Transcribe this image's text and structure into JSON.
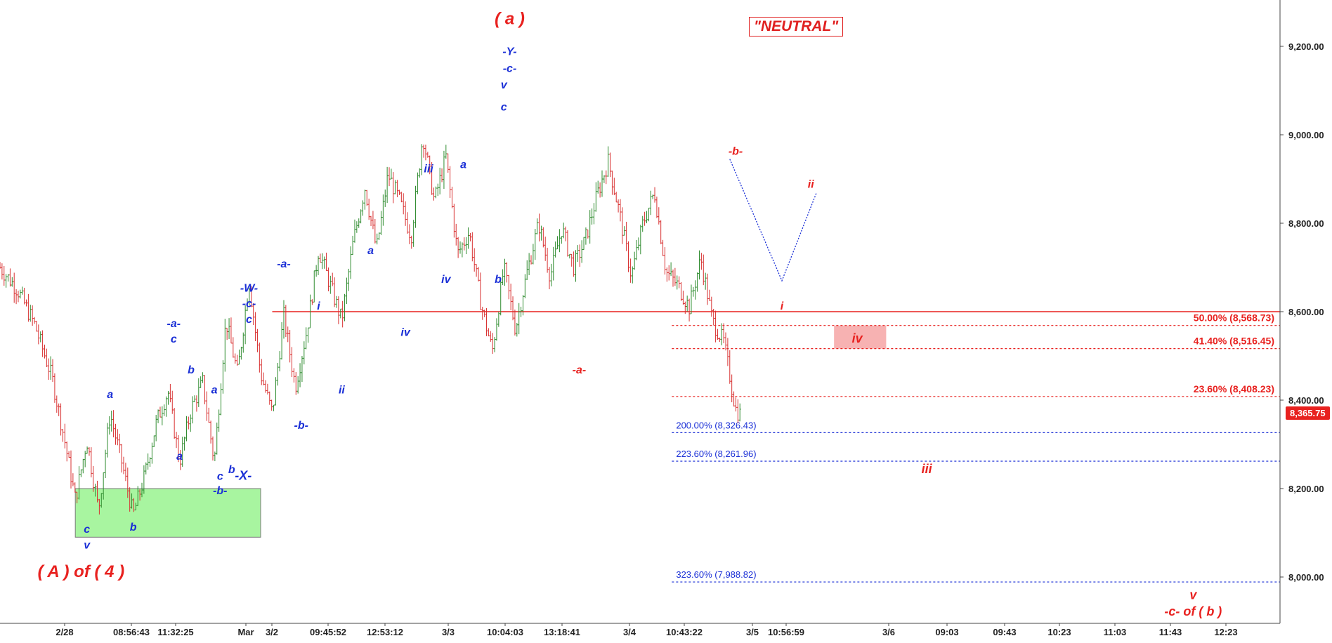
{
  "chart_data": {
    "type": "candlestick",
    "title": "",
    "badge": "\"NEUTRAL\"",
    "current_price": "8,365.75",
    "y_ticks": [
      "8,000.00",
      "8,200.00",
      "8,400.00",
      "8,600.00",
      "8,800.00",
      "9,000.00",
      "9,200.00"
    ],
    "x_ticks": [
      "2/28",
      "08:56:43",
      "11:32:25",
      "Mar",
      "3/2",
      "09:45:52",
      "12:53:12",
      "3/3",
      "10:04:03",
      "13:18:41",
      "3/4",
      "10:43:22",
      "3/5",
      "10:56:59",
      "3/6",
      "09:03",
      "09:43",
      "10:23",
      "11:03",
      "11:43",
      "12:23"
    ],
    "price_path": [
      {
        "t": 0,
        "p": 8700
      },
      {
        "t": 3,
        "p": 8650
      },
      {
        "t": 6,
        "p": 8570
      },
      {
        "t": 9,
        "p": 8450
      },
      {
        "t": 11,
        "p": 8320
      },
      {
        "t": 13,
        "p": 8175
      },
      {
        "t": 15,
        "p": 8310
      },
      {
        "t": 17,
        "p": 8150
      },
      {
        "t": 19,
        "p": 8370
      },
      {
        "t": 21,
        "p": 8260
      },
      {
        "t": 23,
        "p": 8140
      },
      {
        "t": 25,
        "p": 8230
      },
      {
        "t": 27,
        "p": 8350
      },
      {
        "t": 29,
        "p": 8420
      },
      {
        "t": 31,
        "p": 8260
      },
      {
        "t": 33,
        "p": 8380
      },
      {
        "t": 35,
        "p": 8440
      },
      {
        "t": 37,
        "p": 8260
      },
      {
        "t": 39,
        "p": 8580
      },
      {
        "t": 41,
        "p": 8460
      },
      {
        "t": 43,
        "p": 8670
      },
      {
        "t": 45,
        "p": 8460
      },
      {
        "t": 47,
        "p": 8370
      },
      {
        "t": 49,
        "p": 8590
      },
      {
        "t": 51,
        "p": 8430
      },
      {
        "t": 53,
        "p": 8560
      },
      {
        "t": 55,
        "p": 8740
      },
      {
        "t": 57,
        "p": 8660
      },
      {
        "t": 59,
        "p": 8580
      },
      {
        "t": 61,
        "p": 8760
      },
      {
        "t": 63,
        "p": 8880
      },
      {
        "t": 65,
        "p": 8740
      },
      {
        "t": 67,
        "p": 8910
      },
      {
        "t": 69,
        "p": 8850
      },
      {
        "t": 71,
        "p": 8770
      },
      {
        "t": 73,
        "p": 9000
      },
      {
        "t": 75,
        "p": 8850
      },
      {
        "t": 77,
        "p": 8950
      },
      {
        "t": 79,
        "p": 8730
      },
      {
        "t": 81,
        "p": 8780
      },
      {
        "t": 83,
        "p": 8620
      },
      {
        "t": 85,
        "p": 8510
      },
      {
        "t": 87,
        "p": 8700
      },
      {
        "t": 89,
        "p": 8560
      },
      {
        "t": 91,
        "p": 8690
      },
      {
        "t": 93,
        "p": 8800
      },
      {
        "t": 95,
        "p": 8680
      },
      {
        "t": 97,
        "p": 8790
      },
      {
        "t": 99,
        "p": 8700
      },
      {
        "t": 101,
        "p": 8760
      },
      {
        "t": 103,
        "p": 8860
      },
      {
        "t": 105,
        "p": 8940
      },
      {
        "t": 107,
        "p": 8820
      },
      {
        "t": 109,
        "p": 8680
      },
      {
        "t": 111,
        "p": 8800
      },
      {
        "t": 113,
        "p": 8870
      },
      {
        "t": 115,
        "p": 8690
      },
      {
        "t": 117,
        "p": 8660
      },
      {
        "t": 119,
        "p": 8610
      },
      {
        "t": 121,
        "p": 8720
      },
      {
        "t": 123,
        "p": 8580
      },
      {
        "t": 125,
        "p": 8530
      },
      {
        "t": 127,
        "p": 8380
      },
      {
        "t": 128,
        "p": 8365
      }
    ],
    "horizontal_lines": [
      {
        "price": 8600,
        "style": "solid",
        "color": "#e8211f"
      },
      {
        "price": 8568.73,
        "style": "dotted",
        "color": "#e8211f",
        "label": "50.00% (8,568.73)"
      },
      {
        "price": 8516.45,
        "style": "dotted",
        "color": "#e8211f",
        "label": "41.40% (8,516.45)"
      },
      {
        "price": 8408.23,
        "style": "dotted",
        "color": "#e8211f",
        "label": "23.60% (8,408.23)"
      },
      {
        "price": 8326.43,
        "style": "dotted",
        "color": "#1a2fd6",
        "label": "200.00% (8,326.43)"
      },
      {
        "price": 8261.96,
        "style": "dotted",
        "color": "#1a2fd6",
        "label": "223.60% (8,261.96)"
      },
      {
        "price": 7988.82,
        "style": "dotted",
        "color": "#1a2fd6",
        "label": "323.60% (7,988.82)"
      }
    ],
    "zones": [
      {
        "name": "support-box",
        "t0": 13,
        "t1": 45,
        "p_low": 8090,
        "p_high": 8200,
        "color": "#a8f5a0"
      },
      {
        "name": "wave-iv-box",
        "t0": 144,
        "t1": 153,
        "p_low": 8516.45,
        "p_high": 8568.73,
        "color": "#f7b2b2"
      }
    ],
    "wave_labels": [
      {
        "text": "( A ) of ( 4 )",
        "t": 14,
        "p": 8000,
        "color": "red",
        "size": 24
      },
      {
        "text": "c",
        "t": 15,
        "p": 8100,
        "color": "blue",
        "size": 16
      },
      {
        "text": "v",
        "t": 15,
        "p": 8064,
        "color": "blue",
        "size": 16
      },
      {
        "text": "a",
        "t": 19,
        "p": 8405,
        "color": "blue",
        "size": 16
      },
      {
        "text": "b",
        "t": 23,
        "p": 8105,
        "color": "blue",
        "size": 16
      },
      {
        "text": "-a-",
        "t": 30,
        "p": 8565,
        "color": "blue",
        "size": 16
      },
      {
        "text": "c",
        "t": 30,
        "p": 8530,
        "color": "blue",
        "size": 16
      },
      {
        "text": "a",
        "t": 31,
        "p": 8265,
        "color": "blue",
        "size": 16
      },
      {
        "text": "b",
        "t": 33,
        "p": 8460,
        "color": "blue",
        "size": 16
      },
      {
        "text": "a",
        "t": 37,
        "p": 8415,
        "color": "blue",
        "size": 16
      },
      {
        "text": "c",
        "t": 38,
        "p": 8220,
        "color": "blue",
        "size": 16
      },
      {
        "text": "-b-",
        "t": 38,
        "p": 8187,
        "color": "blue",
        "size": 16
      },
      {
        "text": "b",
        "t": 40,
        "p": 8235,
        "color": "blue",
        "size": 16
      },
      {
        "text": "-X-",
        "t": 42,
        "p": 8220,
        "color": "blue",
        "size": 18
      },
      {
        "text": "-W-",
        "t": 43,
        "p": 8645,
        "color": "blue",
        "size": 16
      },
      {
        "text": "-c-",
        "t": 43,
        "p": 8610,
        "color": "blue",
        "size": 16
      },
      {
        "text": "c",
        "t": 43,
        "p": 8575,
        "color": "blue",
        "size": 16
      },
      {
        "text": "-a-",
        "t": 49,
        "p": 8700,
        "color": "blue",
        "size": 16
      },
      {
        "text": "-b-",
        "t": 52,
        "p": 8335,
        "color": "blue",
        "size": 16
      },
      {
        "text": "i",
        "t": 55,
        "p": 8605,
        "color": "blue",
        "size": 16
      },
      {
        "text": "ii",
        "t": 59,
        "p": 8415,
        "color": "blue",
        "size": 16
      },
      {
        "text": "a",
        "t": 64,
        "p": 8730,
        "color": "blue",
        "size": 16
      },
      {
        "text": "iv",
        "t": 70,
        "p": 8545,
        "color": "blue",
        "size": 16
      },
      {
        "text": "iii",
        "t": 74,
        "p": 8915,
        "color": "blue",
        "size": 16
      },
      {
        "text": "a",
        "t": 80,
        "p": 8925,
        "color": "blue",
        "size": 16
      },
      {
        "text": "iv",
        "t": 77,
        "p": 8665,
        "color": "blue",
        "size": 16
      },
      {
        "text": "b",
        "t": 86,
        "p": 8665,
        "color": "blue",
        "size": 16
      },
      {
        "text": "( a )",
        "t": 88,
        "p": 9250,
        "color": "red",
        "size": 24
      },
      {
        "text": "-Y-",
        "t": 88,
        "p": 9180,
        "color": "blue",
        "size": 16
      },
      {
        "text": "-c-",
        "t": 88,
        "p": 9142,
        "color": "blue",
        "size": 16
      },
      {
        "text": "v",
        "t": 87,
        "p": 9105,
        "color": "blue",
        "size": 16
      },
      {
        "text": "c",
        "t": 87,
        "p": 9055,
        "color": "blue",
        "size": 16
      },
      {
        "text": "-a-",
        "t": 100,
        "p": 8460,
        "color": "red",
        "size": 16
      },
      {
        "text": "-b-",
        "t": 127,
        "p": 8955,
        "color": "red",
        "size": 16
      },
      {
        "text": "ii",
        "t": 140,
        "p": 8880,
        "color": "red",
        "size": 16
      },
      {
        "text": "i",
        "t": 135,
        "p": 8605,
        "color": "red",
        "size": 16
      },
      {
        "text": "iv",
        "t": 148,
        "p": 8530,
        "color": "red",
        "size": 18
      },
      {
        "text": "iii",
        "t": 160,
        "p": 8235,
        "color": "red",
        "size": 18
      },
      {
        "text": "v",
        "t": 206,
        "p": 7950,
        "color": "red",
        "size": 18
      },
      {
        "text": "-c- of ( b )",
        "t": 206,
        "p": 7913,
        "color": "red",
        "size": 18
      }
    ],
    "dotted_zigzag": [
      {
        "t": 126,
        "p": 8945
      },
      {
        "t": 135,
        "p": 8670
      },
      {
        "t": 141,
        "p": 8870
      }
    ],
    "colors": {
      "up": "#2e8b2e",
      "down": "#d83030",
      "red": "#e8211f",
      "blue": "#1a2fd6",
      "axis": "#444444",
      "grid": "#000000"
    },
    "ylim": [
      7900,
      9300
    ],
    "xlim": [
      0,
      221
    ]
  }
}
